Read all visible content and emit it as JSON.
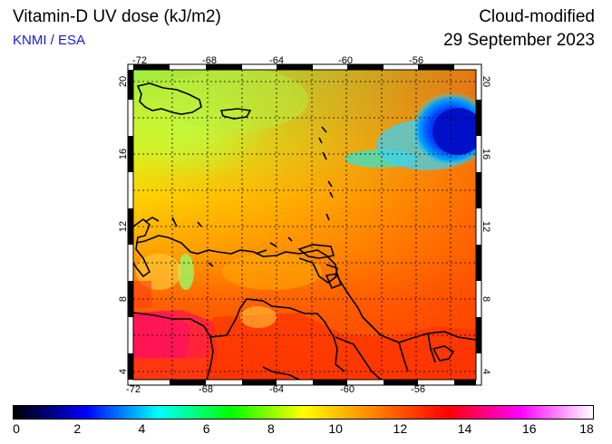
{
  "header": {
    "title": "Vitamin-D UV dose (kJ/m2)",
    "source": "KNMI / ESA",
    "product": "Cloud-modified",
    "date": "29 September 2023"
  },
  "map": {
    "lon_range": [
      -73,
      -53
    ],
    "lat_range": [
      3.5,
      20.5
    ],
    "lon_ticks": [
      "-72",
      "-68",
      "-64",
      "-60",
      "-56"
    ],
    "lat_ticks": [
      "4",
      "8",
      "12",
      "16",
      "20"
    ],
    "grid": true,
    "frame_style": "alternating black/white border"
  },
  "colorbar": {
    "ticks": [
      "0",
      "2",
      "4",
      "6",
      "8",
      "10",
      "12",
      "14",
      "16",
      "18"
    ],
    "range": [
      0,
      18
    ],
    "colors": [
      "#000000",
      "#0000ff",
      "#00ffff",
      "#00ff00",
      "#ffff00",
      "#ff8000",
      "#ff0000",
      "#ff00ff",
      "#ffffff"
    ]
  },
  "regions": [
    {
      "name_key": "cloud-band",
      "value_kJm2": 3
    },
    {
      "name_key": "north-sea",
      "value_kJm2": 9.5
    },
    {
      "name_key": "central-sea",
      "value_kJm2": 11
    },
    {
      "name_key": "southeast",
      "value_kJm2": 13
    },
    {
      "name_key": "south-land",
      "value_kJm2": 14.5
    }
  ]
}
